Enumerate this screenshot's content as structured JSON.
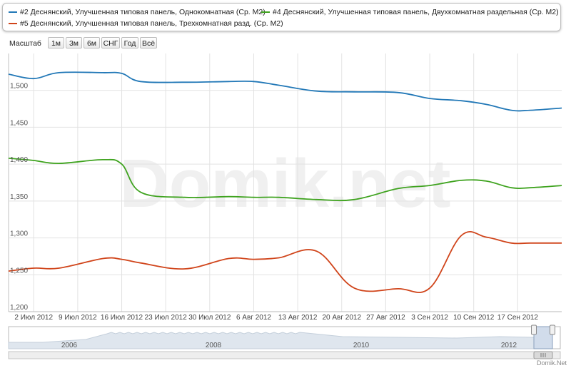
{
  "legend": {
    "items": [
      {
        "label": "#2 Деснянский, Улучшенная типовая панель, Однокомнатная (Ср. М2)",
        "color": "#2278b7"
      },
      {
        "label": "#4 Деснянский, Улучшенная типовая панель, Двухкомнатная раздельная (Ср. М2)",
        "color": "#3fa31f"
      },
      {
        "label": "#5 Деснянский, Улучшенная типовая панель, Трехкомнатная разд. (Ср. М2)",
        "color": "#d0441a"
      }
    ]
  },
  "zoom": {
    "label": "Масштаб",
    "buttons": [
      "1м",
      "3м",
      "6м",
      "СНГ",
      "Год",
      "Всё"
    ]
  },
  "watermark": "Domik.net",
  "footer": "Domik.Net",
  "chart_data": {
    "type": "line",
    "x": [
      "2012-06-28",
      "2012-07-02",
      "2012-07-06",
      "2012-07-13",
      "2012-07-16",
      "2012-07-19",
      "2012-07-26",
      "2012-08-02",
      "2012-08-06",
      "2012-08-10",
      "2012-08-16",
      "2012-08-22",
      "2012-08-29",
      "2012-09-03",
      "2012-09-08",
      "2012-09-12",
      "2012-09-16",
      "2012-09-19",
      "2012-09-24"
    ],
    "x_ticks": [
      "2 Июл 2012",
      "9 Июл 2012",
      "16 Июл 2012",
      "23 Июл 2012",
      "30 Июл 2012",
      "6 Авг 2012",
      "13 Авг 2012",
      "20 Авг 2012",
      "27 Авг 2012",
      "3 Сен 2012",
      "10 Сен 2012",
      "17 Сен 2012"
    ],
    "xlim": [
      "2012-06-28",
      "2012-09-24"
    ],
    "ylim": [
      1200,
      1550
    ],
    "y_ticks": [
      1200,
      1250,
      1300,
      1350,
      1400,
      1450,
      1500
    ],
    "y_tick_labels": [
      "1,200",
      "1,250",
      "1,300",
      "1,350",
      "1,400",
      "1,450",
      "1,500"
    ],
    "grid": true,
    "series": [
      {
        "name": "#2 Деснянский, Улучшенная типовая панель, Однокомнатная (Ср. М2)",
        "color": "#2278b7",
        "values": [
          1522,
          1516,
          1524,
          1524,
          1523,
          1512,
          1511,
          1512,
          1512,
          1507,
          1499,
          1498,
          1497,
          1489,
          1486,
          1481,
          1473,
          1473,
          1476
        ]
      },
      {
        "name": "#4 Деснянский, Улучшенная типовая панель, Двухкомнатная раздельная (Ср. М2)",
        "color": "#3fa31f",
        "values": [
          1408,
          1405,
          1401,
          1406,
          1400,
          1362,
          1355,
          1356,
          1355,
          1355,
          1352,
          1352,
          1367,
          1371,
          1378,
          1377,
          1368,
          1368,
          1371
        ]
      },
      {
        "name": "#5 Деснянский, Улучшенная типовая панель, Трехкомнатная разд. (Ср. М2)",
        "color": "#d0441a",
        "values": [
          1255,
          1259,
          1259,
          1272,
          1271,
          1266,
          1258,
          1272,
          1271,
          1273,
          1282,
          1232,
          1231,
          1232,
          1303,
          1301,
          1293,
          1293,
          1293
        ]
      }
    ]
  },
  "navigator": {
    "year_labels": [
      "2006",
      "2008",
      "2010",
      "2012"
    ]
  }
}
